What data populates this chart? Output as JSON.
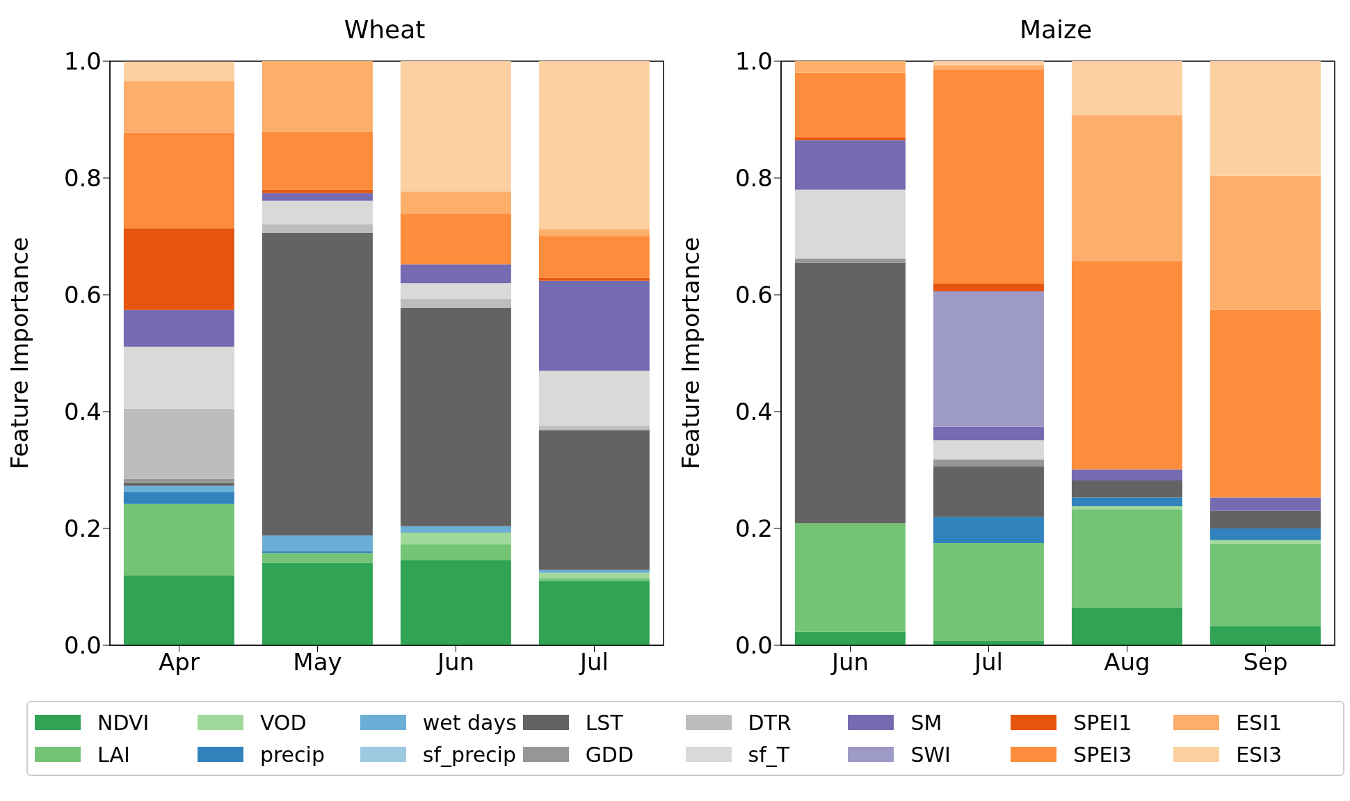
{
  "chart_data": [
    {
      "type": "bar",
      "title": "Wheat",
      "ylabel": "Feature Importance",
      "stacked": true,
      "legend": "bottom",
      "grid": false,
      "categories": [
        "Apr",
        "May",
        "Jun",
        "Jul"
      ],
      "ylim": [
        0,
        1
      ],
      "yticks": [
        {
          "value": 0,
          "label": "0.0"
        },
        {
          "value": 0.2,
          "label": "0.2"
        },
        {
          "value": 0.4,
          "label": "0.4"
        },
        {
          "value": 0.6,
          "label": "0.6"
        },
        {
          "value": 0.8,
          "label": "0.8"
        },
        {
          "value": 1,
          "label": "1.0"
        }
      ],
      "series": [
        {
          "name": "NDVI",
          "color": "#31a354",
          "values": [
            0.12,
            0.141,
            0.146,
            0.11
          ]
        },
        {
          "name": "LAI",
          "color": "#74c476",
          "values": [
            0.122,
            0.017,
            0.027,
            0.005
          ]
        },
        {
          "name": "VOD",
          "color": "#a1d99b",
          "values": [
            0,
            0,
            0.02,
            0.009
          ]
        },
        {
          "name": "precip",
          "color": "#3182bd",
          "values": [
            0.02,
            0.003,
            0,
            0
          ]
        },
        {
          "name": "wet days",
          "color": "#6baed6",
          "values": [
            0.011,
            0.027,
            0.011,
            0.005
          ]
        },
        {
          "name": "sf_precip",
          "color": "#9ecae1",
          "values": [
            0,
            0,
            0,
            0
          ]
        },
        {
          "name": "LST",
          "color": "#636363",
          "values": [
            0.005,
            0.518,
            0.374,
            0.239
          ]
        },
        {
          "name": "GDD",
          "color": "#969696",
          "values": [
            0.007,
            0,
            0,
            0
          ]
        },
        {
          "name": "DTR",
          "color": "#bdbdbd",
          "values": [
            0.12,
            0.015,
            0.015,
            0.008
          ]
        },
        {
          "name": "sf_T",
          "color": "#d9d9d9",
          "values": [
            0.106,
            0.04,
            0.027,
            0.094
          ]
        },
        {
          "name": "SM",
          "color": "#756bb1",
          "values": [
            0.063,
            0.013,
            0.032,
            0.154
          ]
        },
        {
          "name": "SPEI1",
          "color": "#e6550d",
          "values": [
            0.14,
            0.006,
            0,
            0.005
          ]
        },
        {
          "name": "SPEI3",
          "color": "#fd8d3c",
          "values": [
            0.164,
            0.099,
            0.086,
            0.071
          ]
        },
        {
          "name": "ESI1",
          "color": "#fdae6b",
          "values": [
            0.088,
            0.121,
            0.039,
            0.012
          ]
        },
        {
          "name": "ESI3",
          "color": "#fdd0a2",
          "values": [
            0.033,
            0,
            0.223,
            0.288
          ]
        }
      ]
    },
    {
      "type": "bar",
      "title": "Maize",
      "ylabel": "Feature Importance",
      "stacked": true,
      "legend": "bottom",
      "grid": false,
      "categories": [
        "Jun",
        "Jul",
        "Aug",
        "Sep"
      ],
      "ylim": [
        0,
        1
      ],
      "yticks": [
        {
          "value": 0,
          "label": "0.0"
        },
        {
          "value": 0.2,
          "label": "0.2"
        },
        {
          "value": 0.4,
          "label": "0.4"
        },
        {
          "value": 0.6,
          "label": "0.6"
        },
        {
          "value": 0.8,
          "label": "0.8"
        },
        {
          "value": 1,
          "label": "1.0"
        }
      ],
      "series": [
        {
          "name": "NDVI",
          "color": "#31a354",
          "values": [
            0.023,
            0.007,
            0.065,
            0.033
          ]
        },
        {
          "name": "LAI",
          "color": "#74c476",
          "values": [
            0.186,
            0.168,
            0.168,
            0.141
          ]
        },
        {
          "name": "VOD",
          "color": "#a1d99b",
          "values": [
            0,
            0,
            0.005,
            0.006
          ]
        },
        {
          "name": "precip",
          "color": "#3182bd",
          "values": [
            0,
            0.045,
            0.015,
            0.02
          ]
        },
        {
          "name": "wet days",
          "color": "#6baed6",
          "values": [
            0,
            0,
            0,
            0
          ]
        },
        {
          "name": "LST",
          "color": "#636363",
          "values": [
            0.446,
            0.086,
            0.029,
            0.03
          ]
        },
        {
          "name": "GDD",
          "color": "#969696",
          "values": [
            0.007,
            0.012,
            0,
            0
          ]
        },
        {
          "name": "DTR",
          "color": "#bdbdbd",
          "values": [
            0,
            0,
            0,
            0
          ]
        },
        {
          "name": "sf_T",
          "color": "#d9d9d9",
          "values": [
            0.118,
            0.033,
            0,
            0
          ]
        },
        {
          "name": "SM",
          "color": "#756bb1",
          "values": [
            0.085,
            0.023,
            0.019,
            0.023
          ]
        },
        {
          "name": "SWI",
          "color": "#9e9ac8",
          "values": [
            0,
            0.232,
            0,
            0
          ]
        },
        {
          "name": "SPEI1",
          "color": "#e6550d",
          "values": [
            0.005,
            0.013,
            0,
            0
          ]
        },
        {
          "name": "SPEI3",
          "color": "#fd8d3c",
          "values": [
            0.11,
            0.367,
            0.357,
            0.321
          ]
        },
        {
          "name": "ESI1",
          "color": "#fdae6b",
          "values": [
            0.02,
            0.007,
            0.25,
            0.23
          ]
        },
        {
          "name": "ESI3",
          "color": "#fdd0a2",
          "values": [
            0,
            0.007,
            0.092,
            0.196
          ]
        }
      ]
    }
  ]
}
